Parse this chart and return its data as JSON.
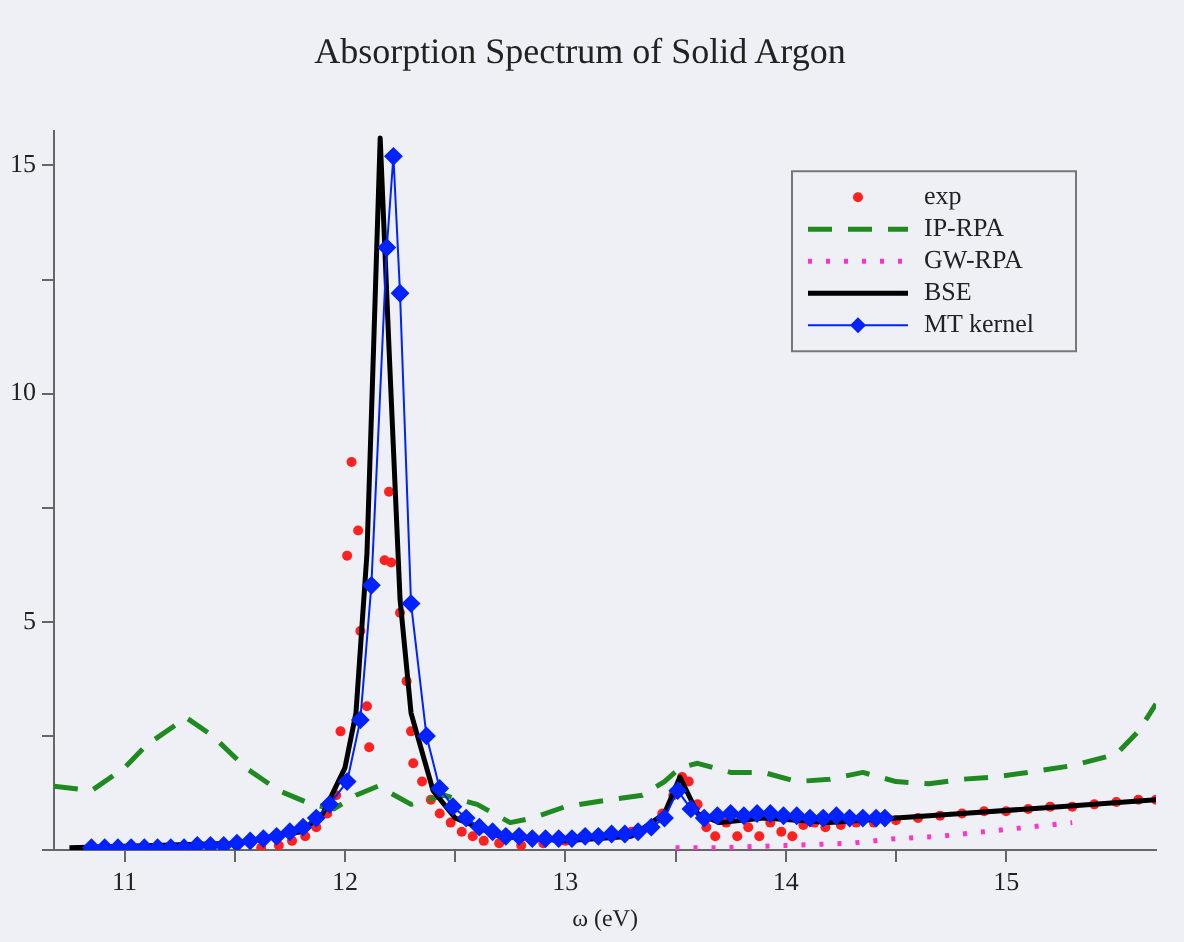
{
  "chart_data": {
    "type": "line",
    "title": "Absorption Spectrum of Solid Argon",
    "xlabel": "ω (eV)",
    "xlim": [
      10.68,
      15.68
    ],
    "ylim": [
      0,
      15.75
    ],
    "xticks": [
      11,
      {
        "value": 11.5,
        "label": null
      },
      12,
      {
        "value": 12.5,
        "label": null
      },
      13,
      {
        "value": 13.5,
        "label": null
      },
      14,
      {
        "value": 14.5,
        "label": null
      },
      15
    ],
    "yticks": [
      {
        "value": 0,
        "label": null
      },
      {
        "value": 2.5,
        "label": null
      },
      5,
      {
        "value": 7.5,
        "label": null
      },
      10,
      {
        "value": 12.5,
        "label": null
      },
      15
    ],
    "grid": false,
    "legend": "top right",
    "series": [
      {
        "name": "exp",
        "type": "scatter",
        "color": "#ff2020",
        "marker": "circle",
        "x": [
          11.62,
          11.7,
          11.76,
          11.82,
          11.87,
          11.92,
          11.96,
          11.98,
          12.01,
          12.03,
          12.06,
          12.07,
          12.1,
          12.11,
          12.18,
          12.2,
          12.21,
          12.25,
          12.28,
          12.3,
          12.31,
          12.35,
          12.39,
          12.43,
          12.48,
          12.53,
          12.58,
          12.63,
          12.7,
          12.8,
          12.9,
          13.0,
          13.3,
          13.44,
          13.49,
          13.53,
          13.56,
          13.6,
          13.64,
          13.68,
          13.73,
          13.78,
          13.83,
          13.88,
          13.93,
          13.98,
          14.03,
          14.08,
          14.13,
          14.18,
          14.25,
          14.32,
          14.4,
          14.5,
          14.6,
          14.7,
          14.8,
          14.9,
          15.0,
          15.1,
          15.2,
          15.3,
          15.4,
          15.5,
          15.6,
          15.68
        ],
        "values": [
          0.05,
          0.1,
          0.2,
          0.3,
          0.5,
          0.8,
          1.2,
          2.6,
          6.45,
          8.5,
          7.0,
          4.8,
          3.15,
          2.25,
          6.35,
          7.85,
          6.3,
          5.2,
          3.7,
          2.6,
          1.9,
          1.5,
          1.1,
          0.8,
          0.6,
          0.4,
          0.3,
          0.2,
          0.15,
          0.1,
          0.15,
          0.2,
          0.4,
          0.8,
          1.2,
          1.6,
          1.5,
          1.0,
          0.5,
          0.3,
          0.6,
          0.3,
          0.5,
          0.3,
          0.6,
          0.4,
          0.3,
          0.55,
          0.6,
          0.5,
          0.55,
          0.6,
          0.6,
          0.65,
          0.7,
          0.75,
          0.8,
          0.85,
          0.85,
          0.9,
          0.95,
          0.95,
          1.0,
          1.05,
          1.1,
          1.1
        ]
      },
      {
        "name": "IP-RPA",
        "type": "line",
        "color": "#1f8a1f",
        "line_style": "dashed",
        "marker": "none",
        "x": [
          10.68,
          10.85,
          11.0,
          11.1,
          11.28,
          11.4,
          11.55,
          11.7,
          11.85,
          11.95,
          12.05,
          12.15,
          12.3,
          12.45,
          12.6,
          12.75,
          12.85,
          13.0,
          13.2,
          13.35,
          13.45,
          13.52,
          13.6,
          13.75,
          13.9,
          14.05,
          14.2,
          14.35,
          14.5,
          14.65,
          14.8,
          14.95,
          15.1,
          15.3,
          15.5,
          15.6,
          15.68
        ],
        "values": [
          1.4,
          1.3,
          1.8,
          2.3,
          2.9,
          2.5,
          1.8,
          1.3,
          1.0,
          0.9,
          1.2,
          1.4,
          1.0,
          1.2,
          1.0,
          0.6,
          0.7,
          0.95,
          1.1,
          1.2,
          1.5,
          1.8,
          1.9,
          1.7,
          1.7,
          1.5,
          1.55,
          1.7,
          1.5,
          1.45,
          1.55,
          1.6,
          1.7,
          1.85,
          2.1,
          2.6,
          3.2
        ]
      },
      {
        "name": "GW-RPA",
        "type": "line",
        "color": "#ff33cc",
        "line_style": "dotted",
        "marker": "none",
        "x": [
          13.5,
          13.7,
          14.0,
          14.3,
          14.5,
          14.7,
          14.9,
          15.1,
          15.3
        ],
        "values": [
          0.05,
          0.05,
          0.1,
          0.15,
          0.25,
          0.3,
          0.4,
          0.5,
          0.6
        ]
      },
      {
        "name": "BSE",
        "type": "line",
        "color": "#000000",
        "line_style": "solid",
        "marker": "none",
        "x": [
          10.75,
          11.5,
          11.8,
          11.9,
          12.0,
          12.05,
          12.1,
          12.13,
          12.16,
          12.2,
          12.25,
          12.3,
          12.4,
          12.5,
          12.7,
          13.0,
          13.3,
          13.45,
          13.52,
          13.6,
          13.7,
          13.9,
          14.2,
          14.5,
          14.8,
          15.1,
          15.4,
          15.68
        ],
        "values": [
          0.05,
          0.15,
          0.4,
          0.8,
          1.8,
          3,
          6.5,
          11,
          15.6,
          11,
          5.5,
          3,
          1.3,
          0.7,
          0.3,
          0.2,
          0.3,
          0.8,
          1.6,
          0.8,
          0.6,
          0.7,
          0.6,
          0.7,
          0.8,
          0.9,
          1.0,
          1.1
        ]
      },
      {
        "name": "MT kernel",
        "type": "line",
        "color": "#0022ff",
        "line_style": "solid",
        "marker": "diamond",
        "x": [
          10.85,
          10.91,
          10.97,
          11.03,
          11.09,
          11.15,
          11.21,
          11.27,
          11.33,
          11.39,
          11.45,
          11.51,
          11.57,
          11.63,
          11.69,
          11.75,
          11.81,
          11.87,
          11.93,
          12.01,
          12.07,
          12.12,
          12.19,
          12.22,
          12.25,
          12.3,
          12.37,
          12.43,
          12.49,
          12.55,
          12.61,
          12.67,
          12.73,
          12.79,
          12.85,
          12.91,
          12.97,
          13.03,
          13.09,
          13.15,
          13.21,
          13.27,
          13.33,
          13.39,
          13.45,
          13.51,
          13.57,
          13.63,
          13.69,
          13.75,
          13.81,
          13.87,
          13.93,
          13.99,
          14.05,
          14.11,
          14.17,
          14.23,
          14.29,
          14.35,
          14.41,
          14.45
        ],
        "values": [
          0.05,
          0.05,
          0.05,
          0.05,
          0.05,
          0.05,
          0.05,
          0.05,
          0.1,
          0.1,
          0.1,
          0.15,
          0.2,
          0.25,
          0.3,
          0.4,
          0.5,
          0.7,
          1.0,
          1.5,
          2.85,
          5.8,
          13.2,
          15.2,
          12.2,
          5.4,
          2.5,
          1.35,
          0.95,
          0.7,
          0.5,
          0.4,
          0.3,
          0.3,
          0.25,
          0.25,
          0.25,
          0.25,
          0.3,
          0.3,
          0.35,
          0.35,
          0.4,
          0.5,
          0.7,
          1.3,
          0.9,
          0.7,
          0.75,
          0.8,
          0.75,
          0.8,
          0.8,
          0.75,
          0.75,
          0.7,
          0.7,
          0.75,
          0.7,
          0.7,
          0.7,
          0.7
        ]
      }
    ]
  }
}
